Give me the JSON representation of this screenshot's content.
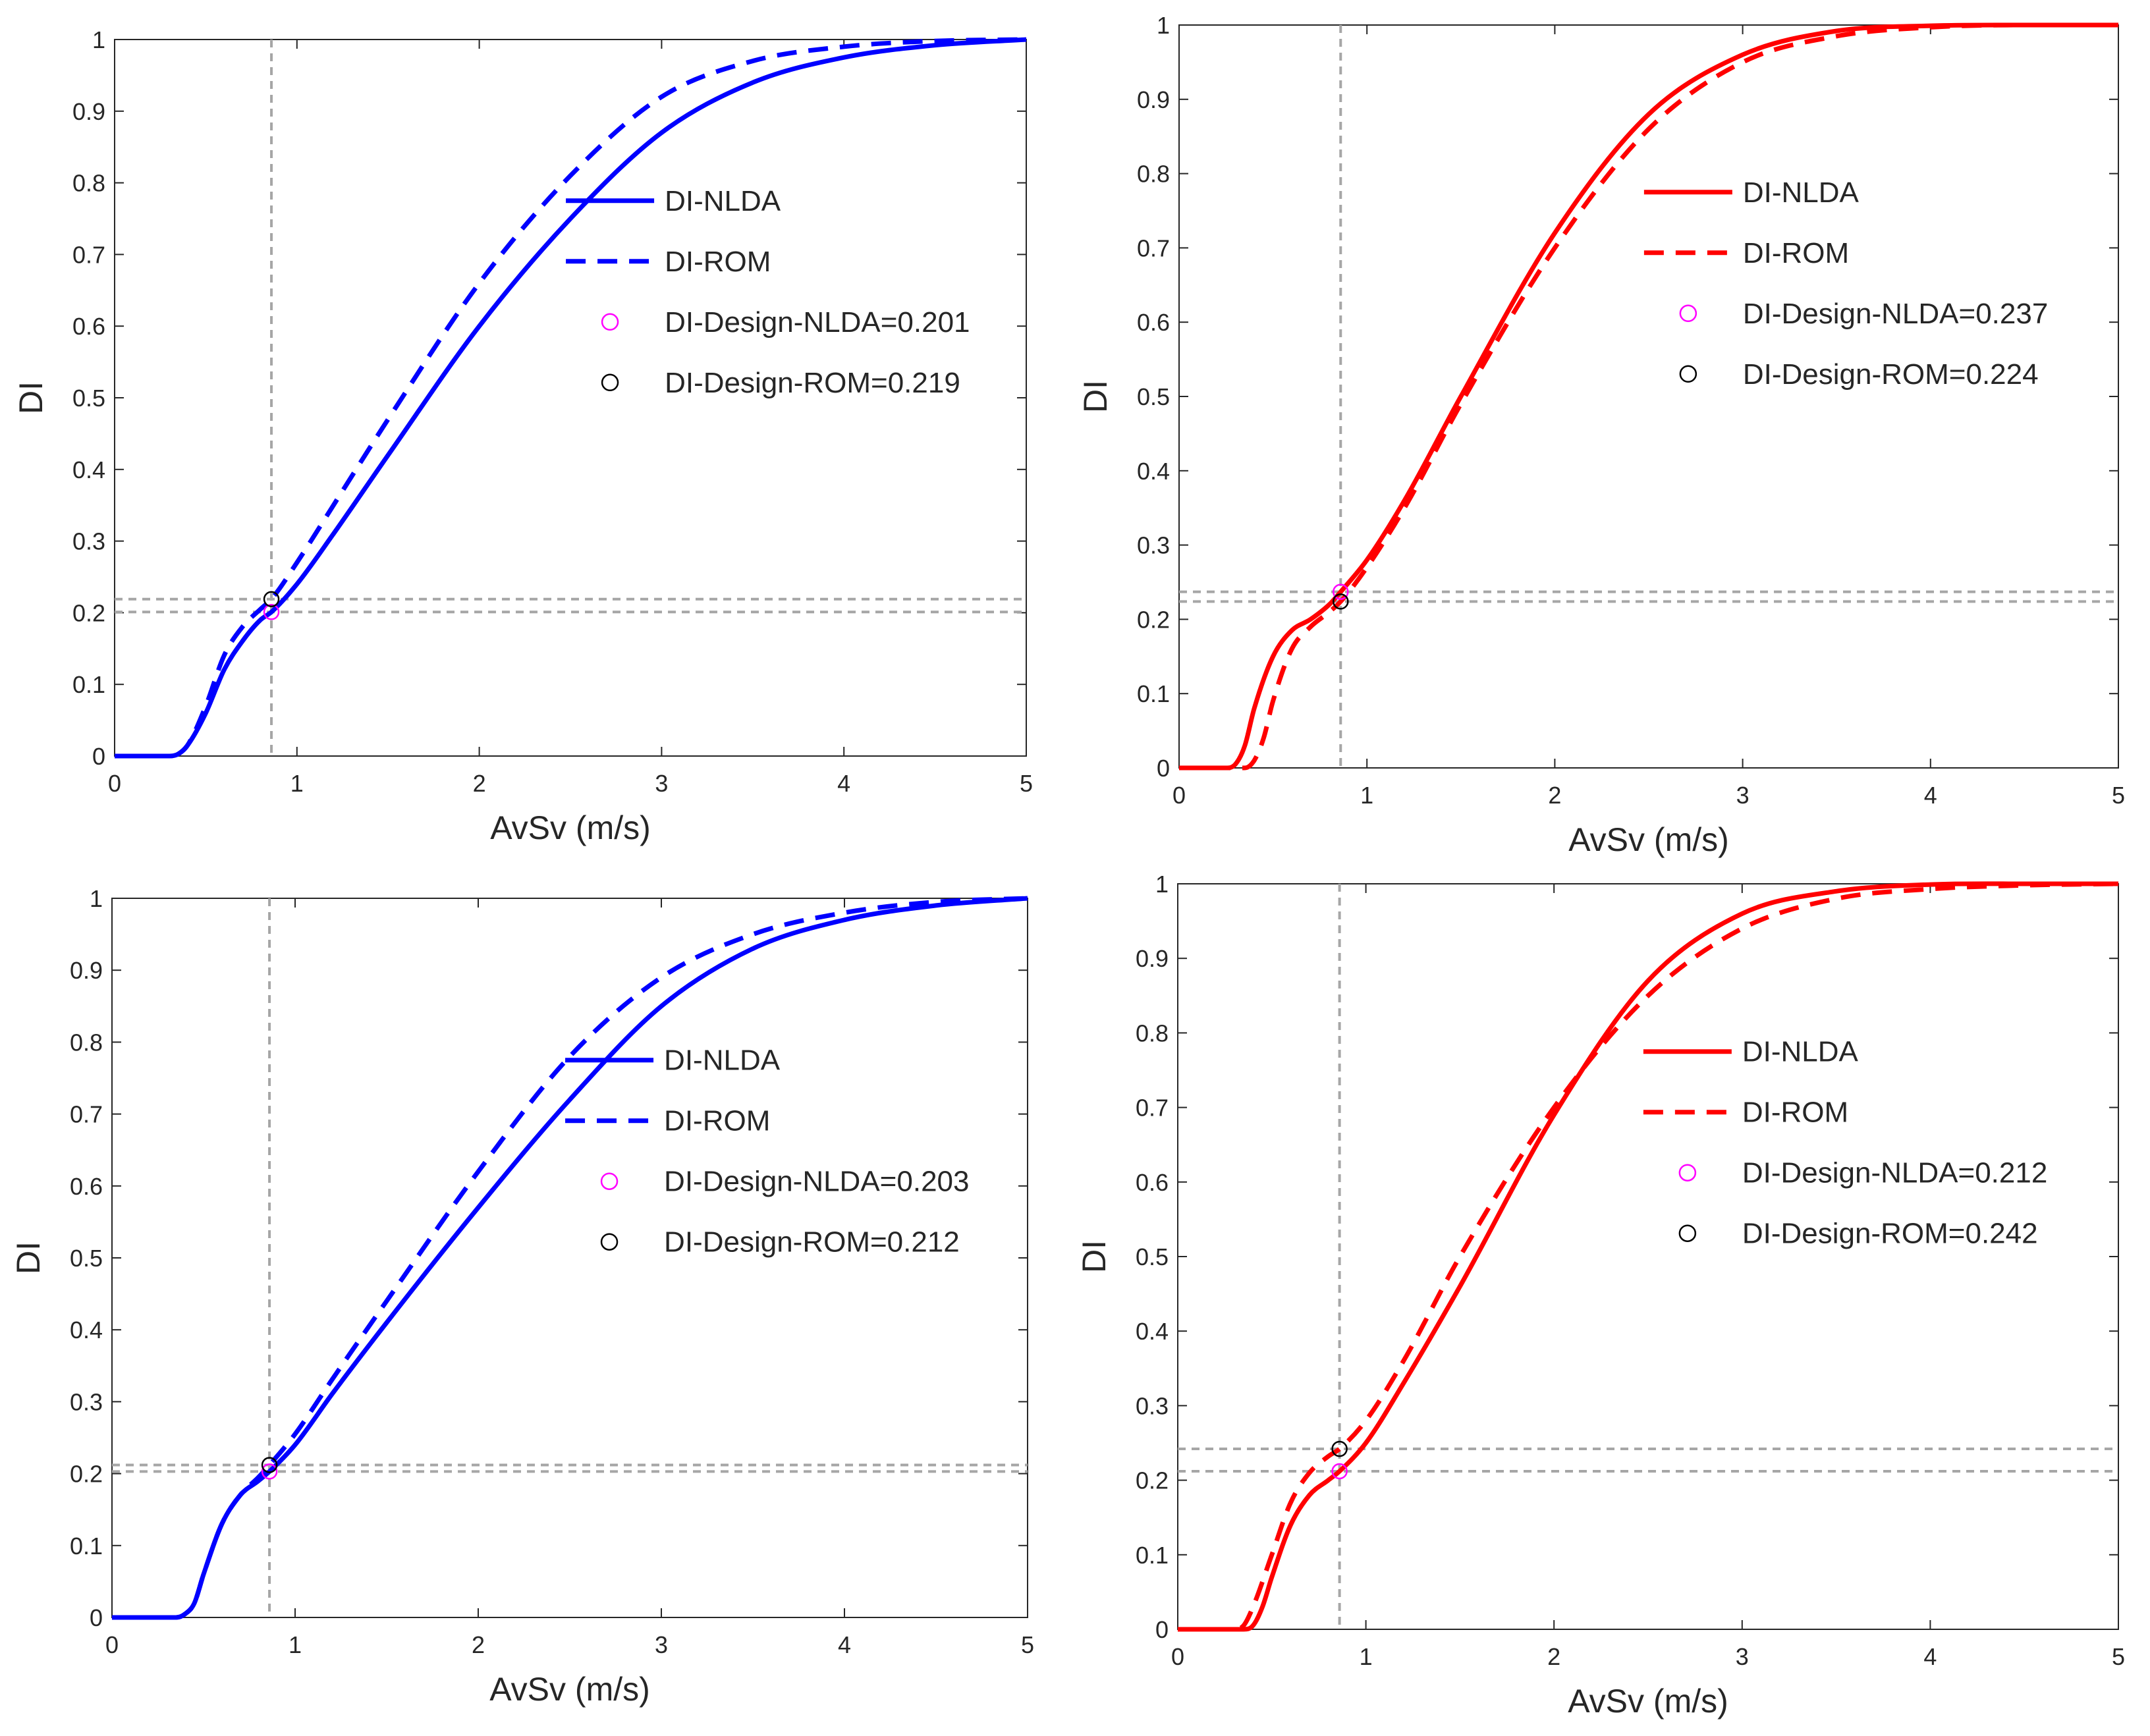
{
  "chart_data": [
    {
      "type": "line",
      "panel": "top-left",
      "xlabel": "AvSv (m/s)",
      "ylabel": "DI",
      "xlim": [
        0,
        5
      ],
      "ylim": [
        0,
        1
      ],
      "xticks": [
        "0",
        "1",
        "2",
        "3",
        "4",
        "5"
      ],
      "yticks": [
        "0",
        "0.1",
        "0.2",
        "0.3",
        "0.4",
        "0.5",
        "0.6",
        "0.7",
        "0.8",
        "0.9",
        "1"
      ],
      "color": "#0000ff",
      "design_x": 0.86,
      "series": [
        {
          "name": "DI-NLDA",
          "style": "solid",
          "x": [
            0,
            0.3,
            0.35,
            0.4,
            0.5,
            0.6,
            0.7,
            0.8,
            0.86,
            1.0,
            1.2,
            1.5,
            2.0,
            2.5,
            3.0,
            3.5,
            4.0,
            4.5,
            5.0
          ],
          "y": [
            0,
            0,
            0.003,
            0.015,
            0.06,
            0.12,
            0.16,
            0.19,
            0.201,
            0.24,
            0.31,
            0.42,
            0.6,
            0.75,
            0.87,
            0.94,
            0.975,
            0.992,
            1.0
          ]
        },
        {
          "name": "DI-ROM",
          "style": "dashed",
          "x": [
            0,
            0.3,
            0.35,
            0.4,
            0.5,
            0.6,
            0.7,
            0.8,
            0.86,
            1.0,
            1.2,
            1.5,
            2.0,
            2.5,
            3.0,
            3.5,
            4.0,
            4.5,
            5.0
          ],
          "y": [
            0,
            0,
            0.003,
            0.015,
            0.07,
            0.14,
            0.18,
            0.205,
            0.219,
            0.27,
            0.35,
            0.47,
            0.66,
            0.81,
            0.92,
            0.97,
            0.99,
            0.998,
            1.0
          ]
        }
      ],
      "points": [
        {
          "name": "DI-Design-NLDA=0.201",
          "y": 0.201,
          "color": "#ff00ff"
        },
        {
          "name": "DI-Design-ROM=0.219",
          "y": 0.219,
          "color": "#000000"
        }
      ],
      "legend": "center-right"
    },
    {
      "type": "line",
      "panel": "top-right",
      "xlabel": "AvSv (m/s)",
      "ylabel": "DI",
      "xlim": [
        0,
        5
      ],
      "ylim": [
        0,
        1
      ],
      "xticks": [
        "0",
        "1",
        "2",
        "3",
        "4",
        "5"
      ],
      "yticks": [
        "0",
        "0.1",
        "0.2",
        "0.3",
        "0.4",
        "0.5",
        "0.6",
        "0.7",
        "0.8",
        "0.9",
        "1"
      ],
      "color": "#ff0000",
      "design_x": 0.86,
      "series": [
        {
          "name": "DI-NLDA",
          "style": "solid",
          "x": [
            0,
            0.25,
            0.3,
            0.35,
            0.4,
            0.5,
            0.6,
            0.7,
            0.8,
            0.86,
            1.0,
            1.2,
            1.5,
            2.0,
            2.5,
            3.0,
            3.5,
            4.0,
            4.5,
            5.0
          ],
          "y": [
            0,
            0,
            0.005,
            0.03,
            0.08,
            0.15,
            0.185,
            0.2,
            0.22,
            0.237,
            0.28,
            0.36,
            0.5,
            0.72,
            0.88,
            0.96,
            0.992,
            0.999,
            1.0,
            1.0
          ]
        },
        {
          "name": "DI-ROM",
          "style": "dashed",
          "x": [
            0,
            0.35,
            0.4,
            0.45,
            0.5,
            0.6,
            0.7,
            0.8,
            0.86,
            1.0,
            1.2,
            1.5,
            2.0,
            2.5,
            3.0,
            3.5,
            4.0,
            4.5,
            5.0
          ],
          "y": [
            0,
            0,
            0.01,
            0.04,
            0.09,
            0.16,
            0.19,
            0.21,
            0.224,
            0.27,
            0.35,
            0.49,
            0.7,
            0.86,
            0.95,
            0.985,
            0.997,
            1.0,
            1.0
          ]
        }
      ],
      "points": [
        {
          "name": "DI-Design-NLDA=0.237",
          "y": 0.237,
          "color": "#ff00ff"
        },
        {
          "name": "DI-Design-ROM=0.224",
          "y": 0.224,
          "color": "#000000"
        }
      ],
      "legend": "center-right"
    },
    {
      "type": "line",
      "panel": "bottom-left",
      "xlabel": "AvSv (m/s)",
      "ylabel": "DI",
      "xlim": [
        0,
        5
      ],
      "ylim": [
        0,
        1
      ],
      "xticks": [
        "0",
        "1",
        "2",
        "3",
        "4",
        "5"
      ],
      "yticks": [
        "0",
        "0.1",
        "0.2",
        "0.3",
        "0.4",
        "0.5",
        "0.6",
        "0.7",
        "0.8",
        "0.9",
        "1"
      ],
      "color": "#0000ff",
      "design_x": 0.86,
      "series": [
        {
          "name": "DI-NLDA",
          "style": "solid",
          "x": [
            0,
            0.35,
            0.4,
            0.45,
            0.5,
            0.6,
            0.7,
            0.8,
            0.86,
            1.0,
            1.2,
            1.5,
            2.0,
            2.5,
            3.0,
            3.5,
            4.0,
            4.5,
            5.0
          ],
          "y": [
            0,
            0,
            0.005,
            0.02,
            0.06,
            0.13,
            0.17,
            0.19,
            0.203,
            0.24,
            0.31,
            0.41,
            0.57,
            0.72,
            0.85,
            0.93,
            0.97,
            0.99,
            1.0
          ]
        },
        {
          "name": "DI-ROM",
          "style": "dashed",
          "x": [
            0,
            0.35,
            0.4,
            0.45,
            0.5,
            0.6,
            0.7,
            0.8,
            0.86,
            1.0,
            1.2,
            1.5,
            2.0,
            2.5,
            3.0,
            3.5,
            4.0,
            4.5,
            5.0
          ],
          "y": [
            0,
            0,
            0.005,
            0.02,
            0.06,
            0.13,
            0.17,
            0.195,
            0.212,
            0.255,
            0.33,
            0.44,
            0.62,
            0.78,
            0.89,
            0.95,
            0.98,
            0.995,
            1.0
          ]
        }
      ],
      "points": [
        {
          "name": "DI-Design-NLDA=0.203",
          "y": 0.203,
          "color": "#ff00ff"
        },
        {
          "name": "DI-Design-ROM=0.212",
          "y": 0.212,
          "color": "#000000"
        }
      ],
      "legend": "center-right"
    },
    {
      "type": "line",
      "panel": "bottom-right",
      "xlabel": "AvSv (m/s)",
      "ylabel": "DI",
      "xlim": [
        0,
        5
      ],
      "ylim": [
        0,
        1
      ],
      "xticks": [
        "0",
        "1",
        "2",
        "3",
        "4",
        "5"
      ],
      "yticks": [
        "0",
        "0.1",
        "0.2",
        "0.3",
        "0.4",
        "0.5",
        "0.6",
        "0.7",
        "0.8",
        "0.9",
        "1"
      ],
      "color": "#ff0000",
      "design_x": 0.86,
      "series": [
        {
          "name": "DI-NLDA",
          "style": "solid",
          "x": [
            0,
            0.35,
            0.4,
            0.45,
            0.5,
            0.6,
            0.7,
            0.8,
            0.86,
            1.0,
            1.2,
            1.5,
            2.0,
            2.5,
            3.0,
            3.5,
            4.0,
            4.5,
            5.0
          ],
          "y": [
            0,
            0,
            0.005,
            0.03,
            0.07,
            0.14,
            0.18,
            0.2,
            0.212,
            0.25,
            0.33,
            0.46,
            0.69,
            0.87,
            0.96,
            0.99,
            0.999,
            1.0,
            1.0
          ]
        },
        {
          "name": "DI-ROM",
          "style": "dashed",
          "x": [
            0,
            0.3,
            0.35,
            0.4,
            0.5,
            0.6,
            0.7,
            0.8,
            0.86,
            1.0,
            1.2,
            1.5,
            2.0,
            2.5,
            3.0,
            3.5,
            4.0,
            4.5,
            5.0
          ],
          "y": [
            0,
            0,
            0.005,
            0.03,
            0.1,
            0.17,
            0.21,
            0.232,
            0.242,
            0.28,
            0.36,
            0.5,
            0.7,
            0.85,
            0.94,
            0.98,
            0.993,
            0.998,
            1.0
          ]
        }
      ],
      "points": [
        {
          "name": "DI-Design-NLDA=0.212",
          "y": 0.212,
          "color": "#ff00ff"
        },
        {
          "name": "DI-Design-ROM=0.242",
          "y": 0.242,
          "color": "#000000"
        }
      ],
      "legend": "center-right"
    }
  ]
}
